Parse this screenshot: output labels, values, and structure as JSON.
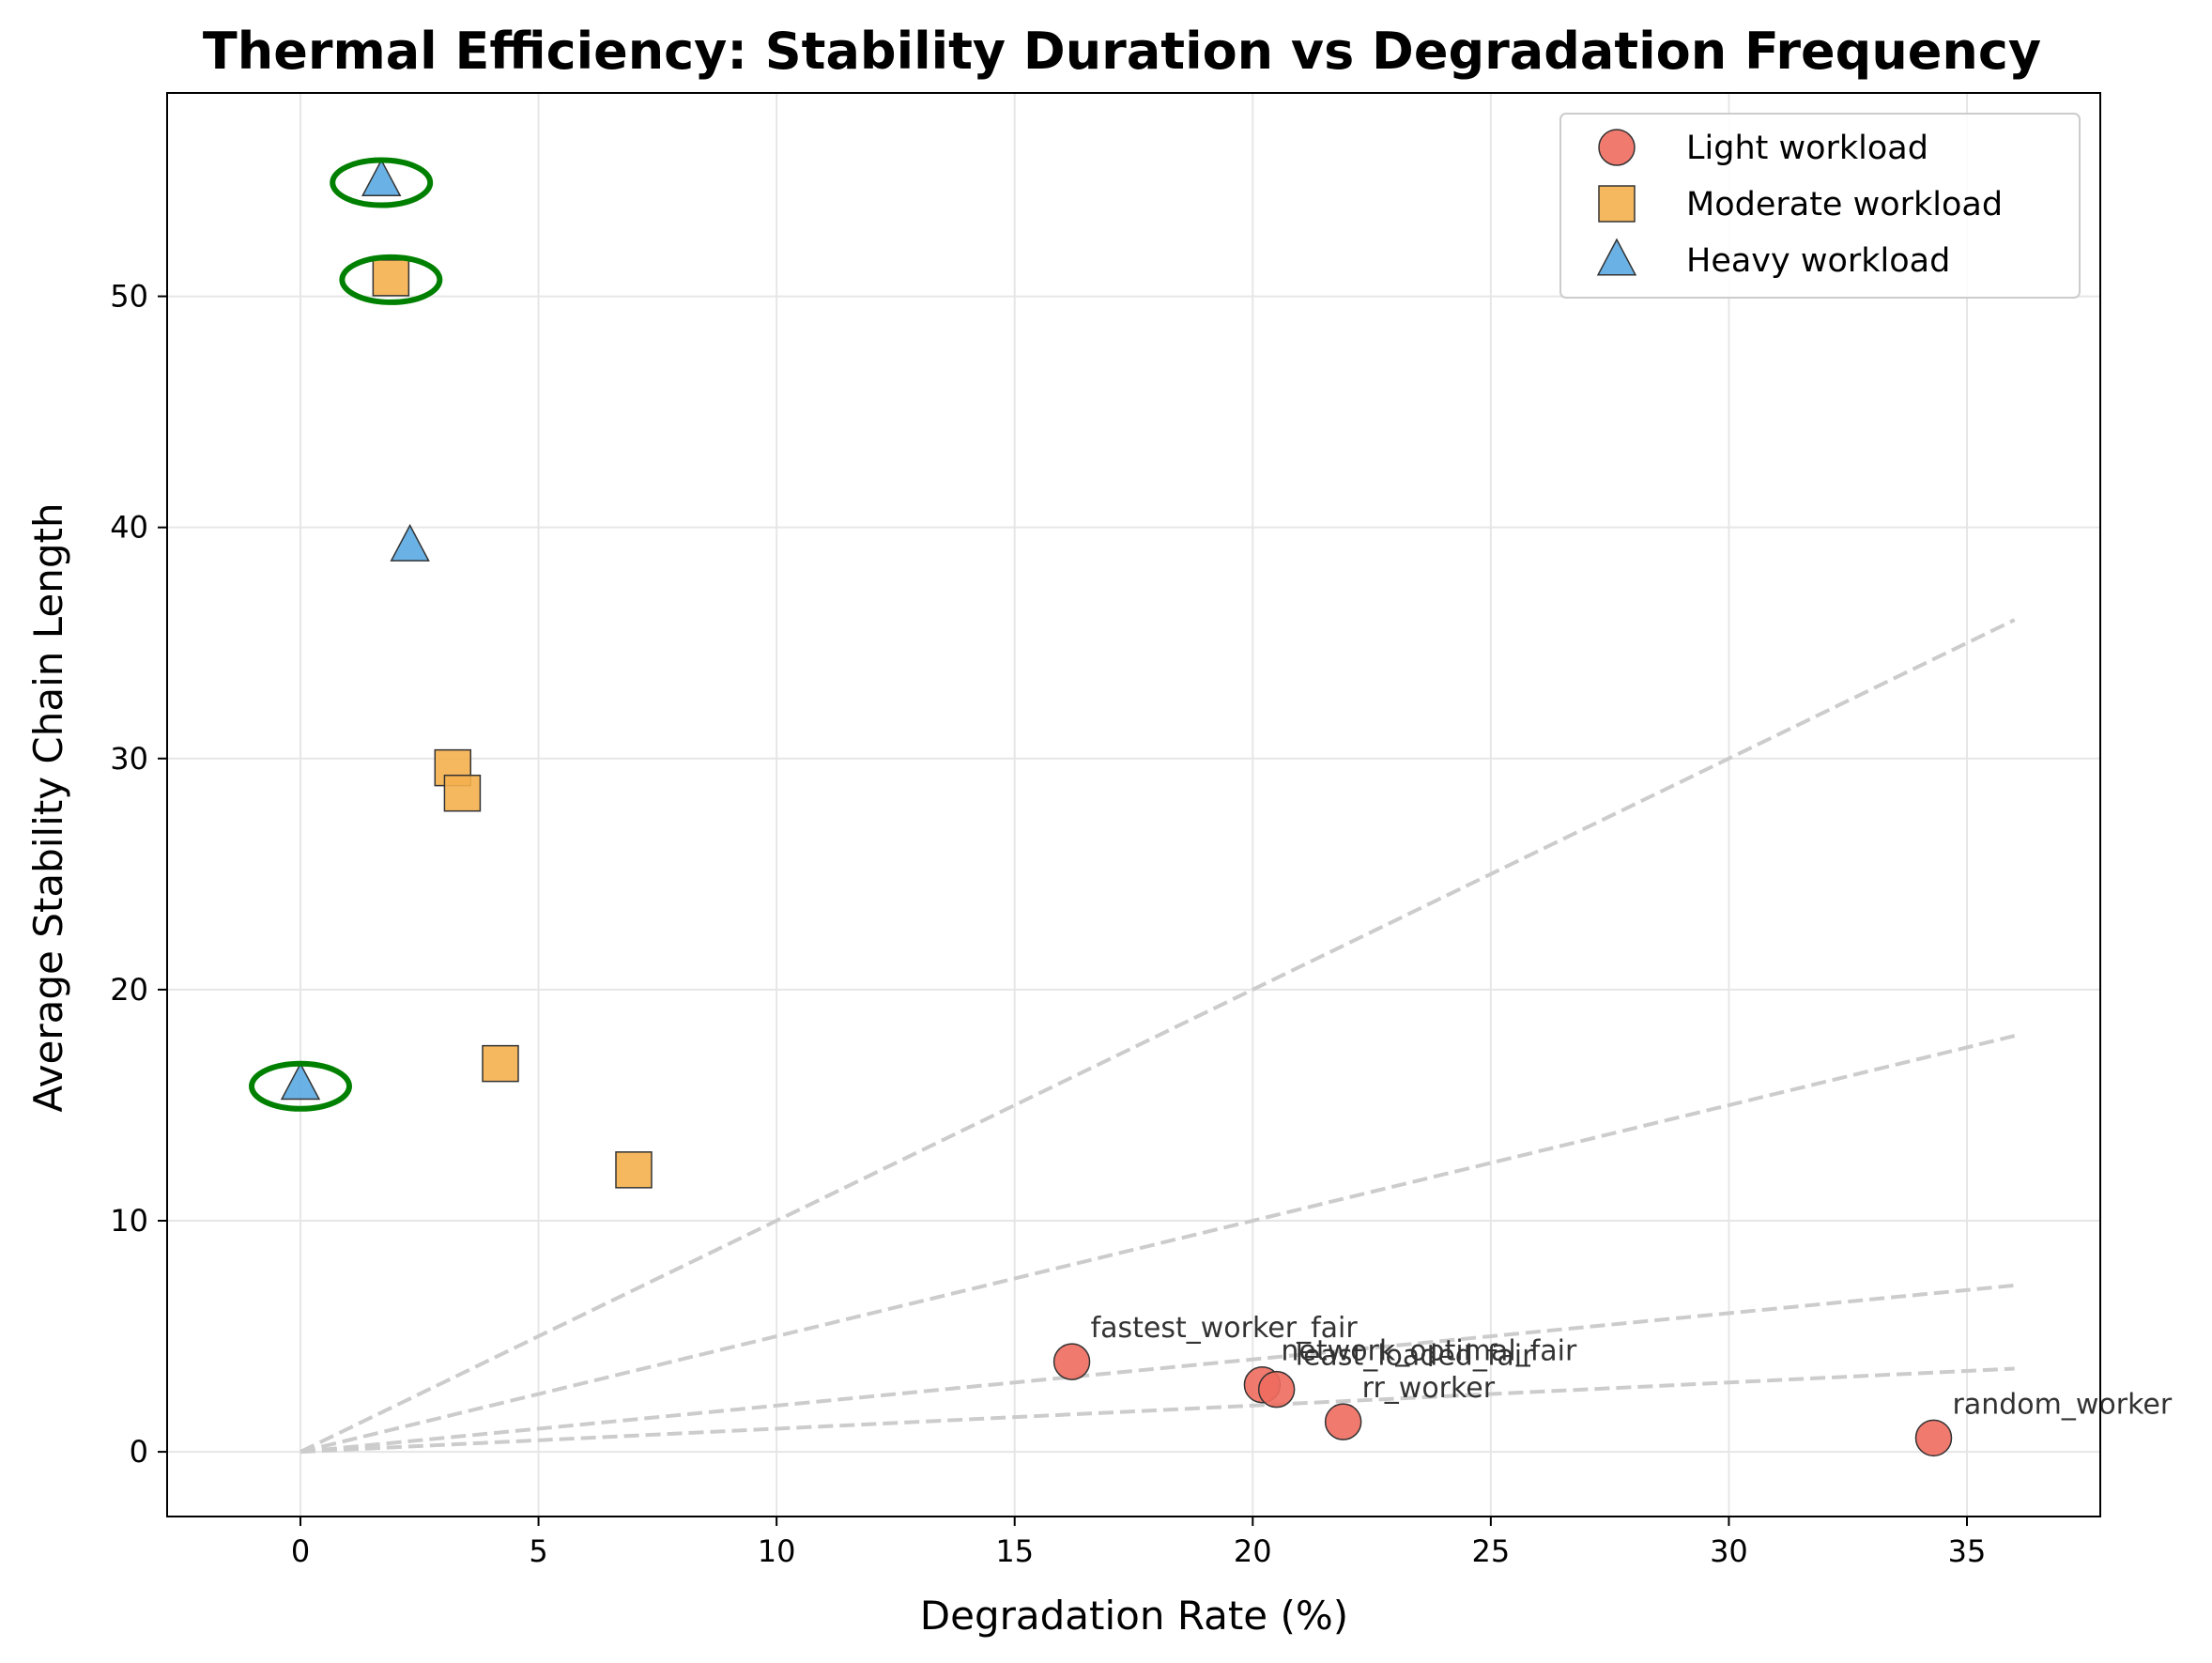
{
  "chart_data": {
    "type": "scatter",
    "title": "Thermal Efficiency: Stability Duration vs Degradation Frequency",
    "xlabel": "Degradation Rate (%)",
    "ylabel": "Average Stability Chain Length",
    "xlim": [
      -2.8,
      37.8
    ],
    "ylim": [
      -2.8,
      58.8
    ],
    "xticks": [
      0,
      5,
      10,
      15,
      20,
      25,
      30,
      35
    ],
    "yticks": [
      0,
      10,
      20,
      30,
      40,
      50
    ],
    "grid": true,
    "legend_position": "top-right",
    "reference_lines": [
      {
        "slope": 1.0,
        "x_end": 36
      },
      {
        "slope": 0.5,
        "x_end": 36
      },
      {
        "slope": 0.2,
        "x_end": 36
      },
      {
        "slope": 0.1,
        "x_end": 36
      }
    ],
    "series": [
      {
        "name": "Light workload",
        "marker": "circle",
        "color": "#ee6b5e",
        "points": [
          {
            "x": 16.2,
            "y": 3.9,
            "label": "fastest_worker_fair"
          },
          {
            "x": 20.2,
            "y": 2.9,
            "label": "network_optimal_fair"
          },
          {
            "x": 20.5,
            "y": 2.7,
            "label": "least_loaded_fair"
          },
          {
            "x": 21.9,
            "y": 1.3,
            "label": "rr_worker"
          },
          {
            "x": 34.3,
            "y": 0.6,
            "label": "random_worker"
          }
        ]
      },
      {
        "name": "Moderate workload",
        "marker": "square",
        "color": "#f5b04e",
        "points": [
          {
            "x": 1.9,
            "y": 50.8
          },
          {
            "x": 3.2,
            "y": 29.6
          },
          {
            "x": 3.4,
            "y": 28.5
          },
          {
            "x": 4.2,
            "y": 16.8
          },
          {
            "x": 7.0,
            "y": 12.2
          }
        ]
      },
      {
        "name": "Heavy workload",
        "marker": "triangle",
        "color": "#5aaae2",
        "points": [
          {
            "x": 1.7,
            "y": 55.0
          },
          {
            "x": 2.3,
            "y": 39.2
          },
          {
            "x": 0.0,
            "y": 15.9
          }
        ]
      }
    ],
    "highlights": [
      {
        "x": 1.7,
        "y": 55.0
      },
      {
        "x": 1.9,
        "y": 50.8
      },
      {
        "x": 0.0,
        "y": 15.9
      }
    ],
    "highlight_color": "#008000"
  }
}
